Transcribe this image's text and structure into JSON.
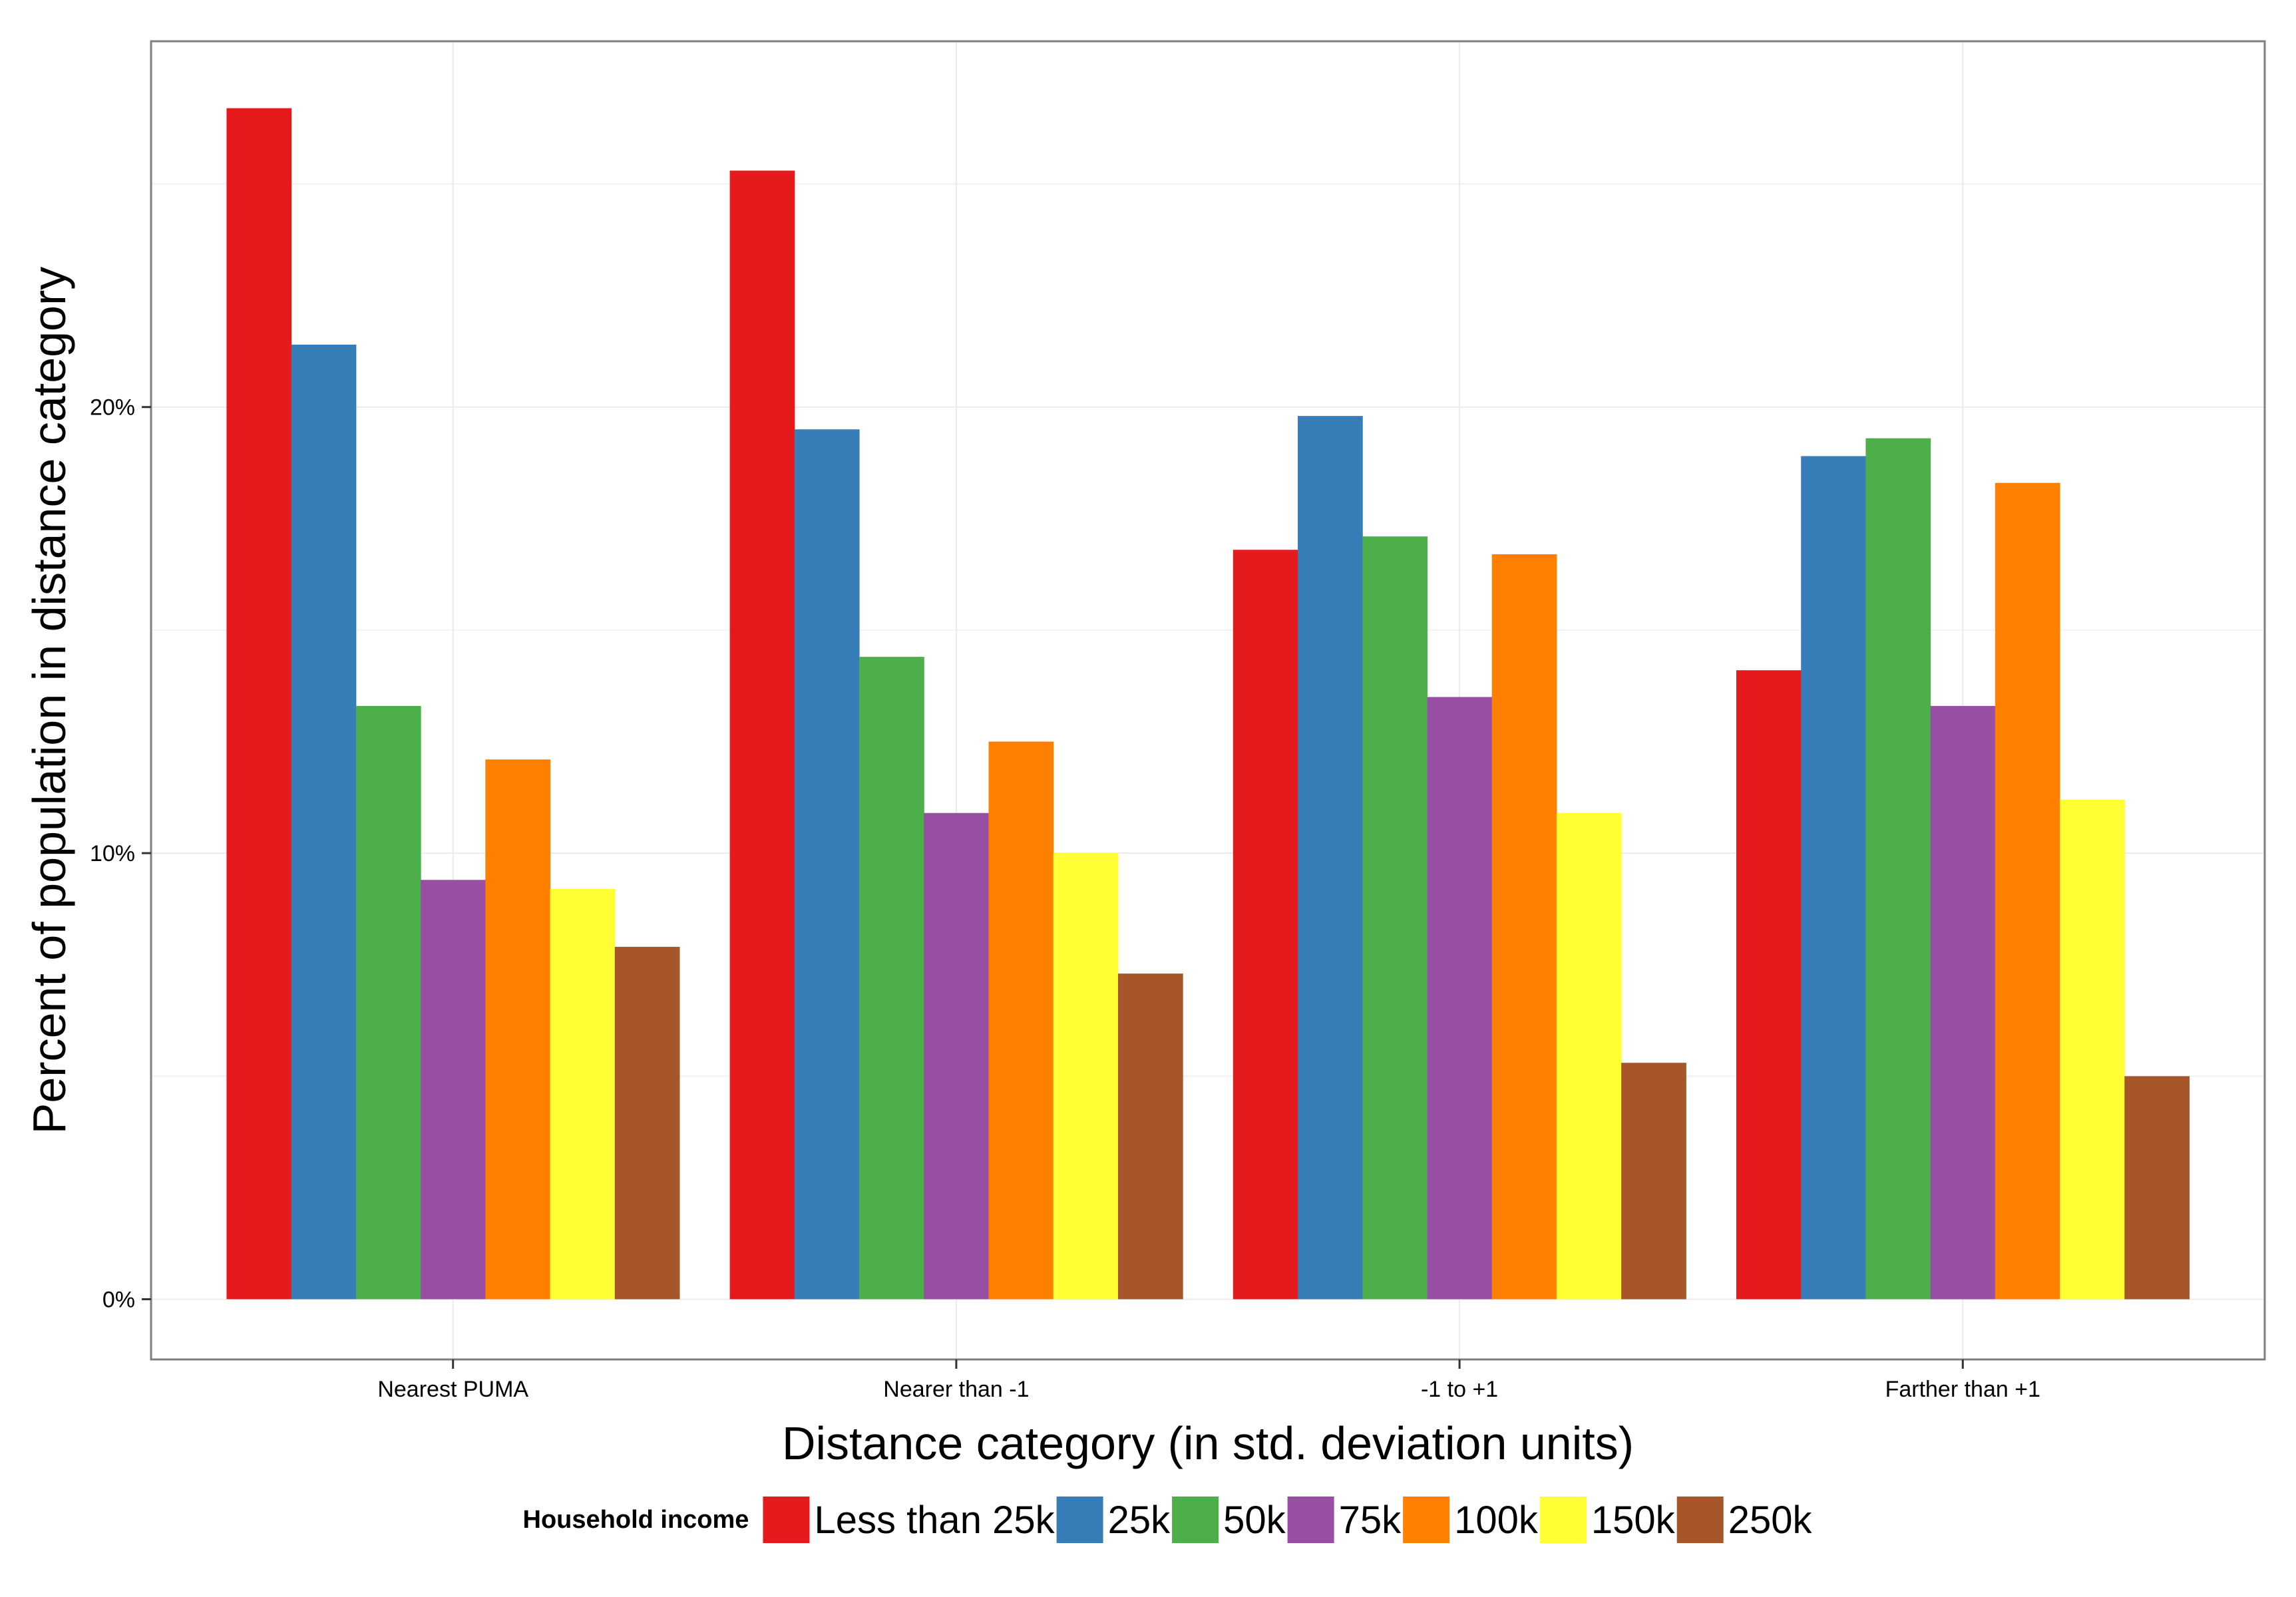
{
  "chart_data": {
    "type": "bar",
    "title": "",
    "xlabel": "Distance category (in std. deviation units)",
    "ylabel": "Percent of population in distance category",
    "ylim": [
      -1.35,
      28.2
    ],
    "yticks": [
      0,
      10,
      20
    ],
    "ytick_labels": [
      "0%",
      "10%",
      "20%"
    ],
    "grid": true,
    "categories": [
      "Nearest PUMA",
      "Nearer than -1",
      "-1 to +1",
      "Farther than +1"
    ],
    "legend": {
      "title": "Household income",
      "position": "bottom"
    },
    "series": [
      {
        "name": "Less than 25k",
        "color": "#E41A1C",
        "values": [
          26.7,
          25.3,
          16.8,
          14.1
        ]
      },
      {
        "name": "25k",
        "color": "#377EB8",
        "values": [
          21.4,
          19.5,
          19.8,
          18.9
        ]
      },
      {
        "name": "50k",
        "color": "#4DAF4A",
        "values": [
          13.3,
          14.4,
          17.1,
          19.3
        ]
      },
      {
        "name": "75k",
        "color": "#984EA3",
        "values": [
          9.4,
          10.9,
          13.5,
          13.3
        ]
      },
      {
        "name": "100k",
        "color": "#FF7F00",
        "values": [
          12.1,
          12.5,
          16.7,
          18.3
        ]
      },
      {
        "name": "150k",
        "color": "#FFFF33",
        "values": [
          9.2,
          10.0,
          10.9,
          11.2
        ]
      },
      {
        "name": "250k",
        "color": "#A65628",
        "values": [
          7.9,
          7.3,
          5.3,
          5.0
        ]
      }
    ]
  }
}
